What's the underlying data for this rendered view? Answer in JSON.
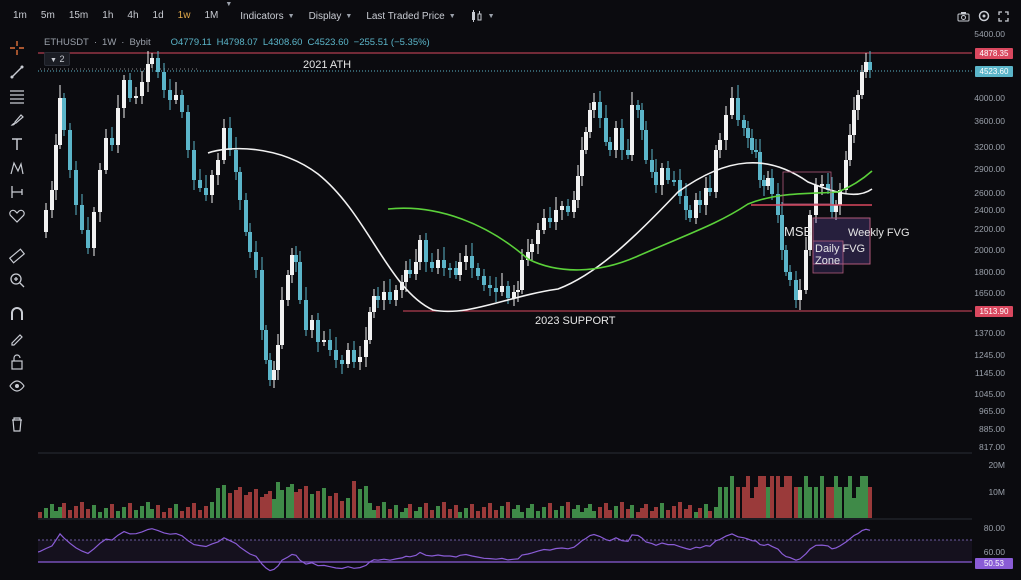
{
  "toolbar_top": {
    "timeframes": [
      "1m",
      "5m",
      "15m",
      "1h",
      "4h",
      "1d",
      "1w",
      "1M"
    ],
    "active_timeframe": "1w",
    "indicators_label": "Indicators",
    "display_label": "Display",
    "price_type_label": "Last Traded Price",
    "chart_style_icon": "candles-icon",
    "right_icons": [
      "camera-icon",
      "settings-icon",
      "fullscreen-icon"
    ]
  },
  "legend": {
    "symbol": "ETHUSDT",
    "interval": "1W",
    "exchange": "Bybit",
    "open": "O4779.11",
    "high": "H4798.07",
    "low": "L4308.60",
    "close": "C4523.60",
    "change": "−255.51 (−5.35%)",
    "indicator_count": "2"
  },
  "price_axis": {
    "labels": [
      "5400.00",
      "4000.00",
      "3600.00",
      "3200.00",
      "2900.00",
      "2600.00",
      "2400.00",
      "2200.00",
      "2000.00",
      "1800.00",
      "1650.00",
      "1370.00",
      "1245.00",
      "1145.00",
      "1045.00",
      "965.00",
      "885.00",
      "817.00"
    ],
    "tags": [
      {
        "text": "4878.35",
        "color": "#d9485f"
      },
      {
        "text": "4523.60",
        "color": "#5bb5c9"
      },
      {
        "text": "1513.90",
        "color": "#d9485f"
      }
    ]
  },
  "volume_axis": {
    "labels": [
      "20M",
      "10M"
    ]
  },
  "rsi_axis": {
    "labels": [
      "80.00",
      "60.00"
    ],
    "tag": "50.53"
  },
  "annotations": {
    "ath": "2021 ATH",
    "support": "2023 SUPPORT",
    "msb": "MSB",
    "weekly_fvg": "Weekly FVG",
    "daily_fvg_1": "Daily FVG",
    "daily_fvg_2": "Zone"
  },
  "colors": {
    "up": "#f2f2f2",
    "down": "#5bb5c9",
    "ma_white": "#f2f2f2",
    "ma_green": "#5bd13a",
    "resistance": "#d9485f",
    "rsi": "#8a5cd6"
  }
}
